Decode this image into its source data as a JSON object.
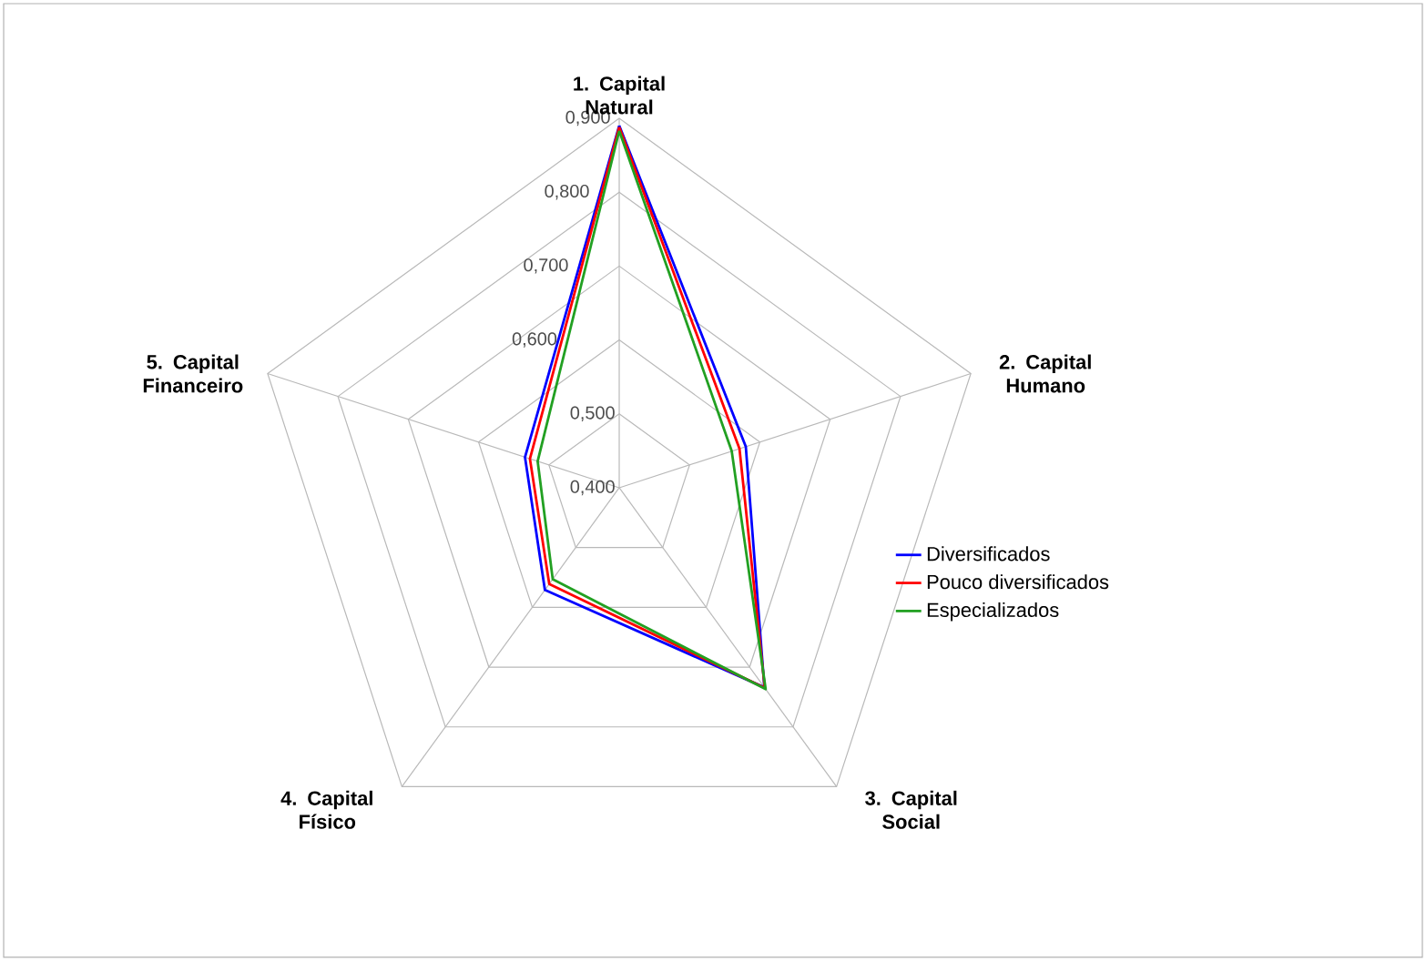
{
  "chart_data": {
    "type": "radar",
    "categories": [
      "1. Capital Natural",
      "2. Capital Humano",
      "3. Capital Social",
      "4. Capital Físico",
      "5. Capital Financeiro"
    ],
    "series": [
      {
        "name": "Diversificados",
        "color": "#0000ff",
        "values": [
          0.89,
          0.58,
          0.734,
          0.571,
          0.534
        ]
      },
      {
        "name": "Pouco diversificados",
        "color": "#ff0000",
        "values": [
          0.888,
          0.571,
          0.735,
          0.561,
          0.527
        ]
      },
      {
        "name": "Especializados",
        "color": "#22a022",
        "values": [
          0.883,
          0.56,
          0.737,
          0.553,
          0.516
        ]
      }
    ],
    "ylim": [
      0.4,
      0.9
    ],
    "yticks": [
      {
        "value": 0.4,
        "label": "0,400"
      },
      {
        "value": 0.5,
        "label": "0,500"
      },
      {
        "value": 0.6,
        "label": "0,600"
      },
      {
        "value": 0.7,
        "label": "0,700"
      },
      {
        "value": 0.8,
        "label": "0,800"
      },
      {
        "value": 0.9,
        "label": "0,900"
      }
    ],
    "grid": true,
    "legend": "right"
  }
}
